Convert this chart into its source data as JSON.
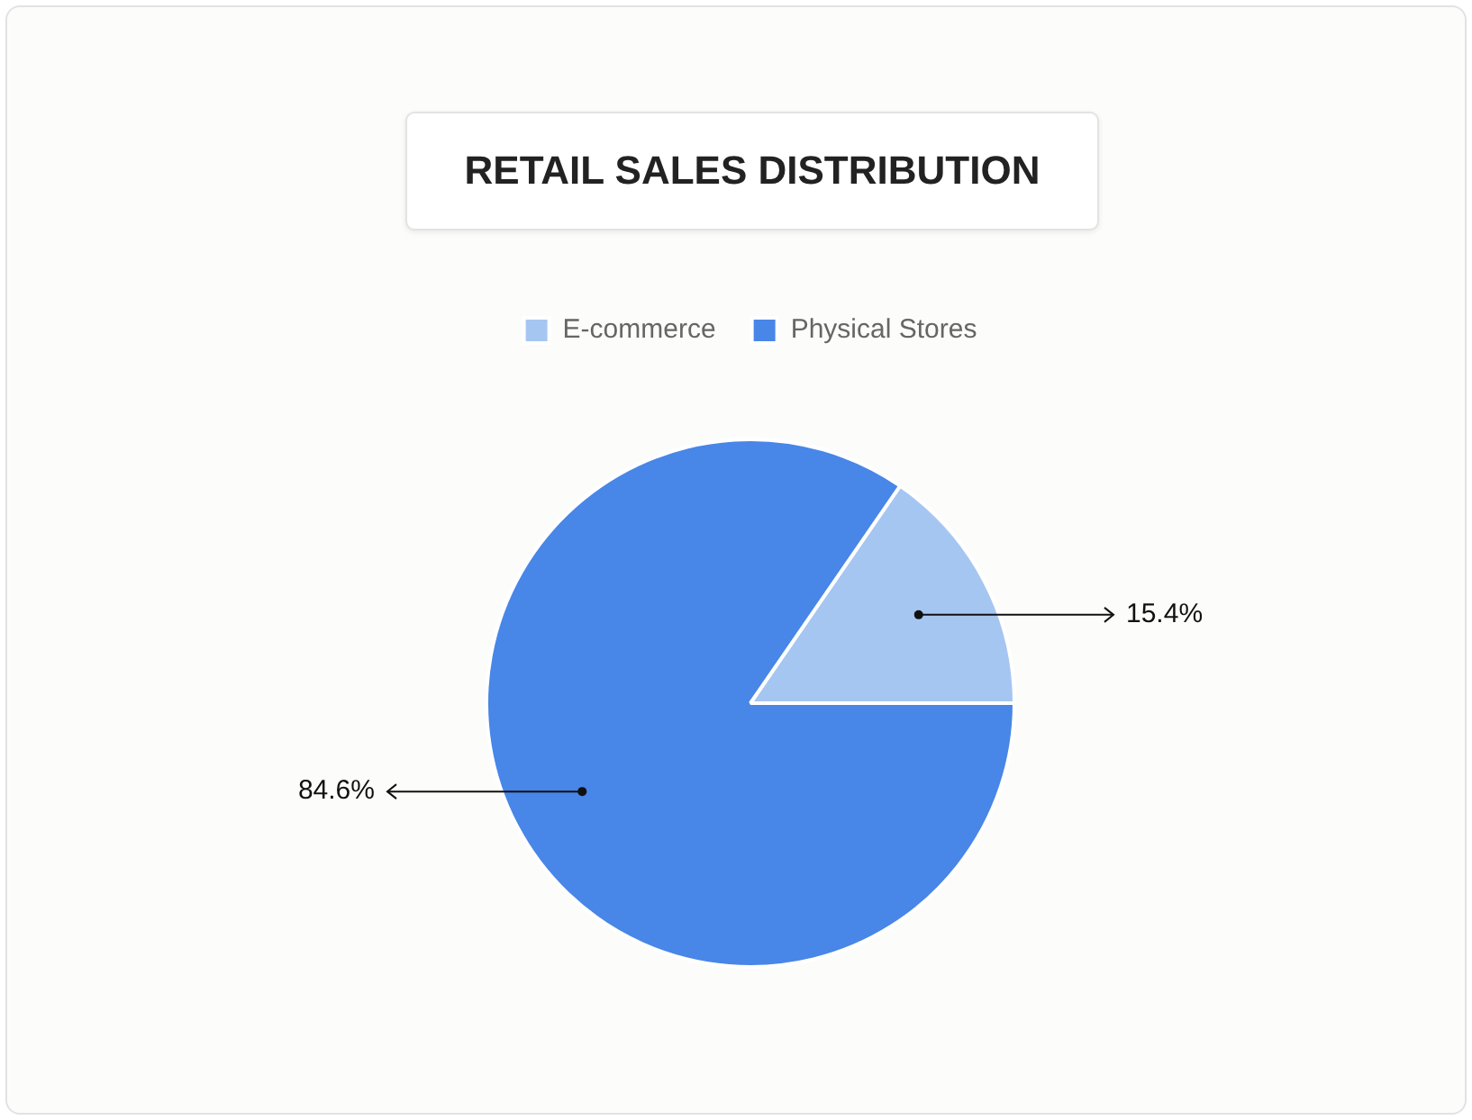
{
  "chart_data": {
    "type": "pie",
    "title": "RETAIL SALES DISTRIBUTION",
    "categories": [
      "E-commerce",
      "Physical Stores"
    ],
    "values": [
      15.4,
      84.6
    ],
    "colors": [
      "#a6c6f2",
      "#4886e8"
    ],
    "value_labels": [
      "15.4%",
      "84.6%"
    ],
    "legend": "top"
  }
}
